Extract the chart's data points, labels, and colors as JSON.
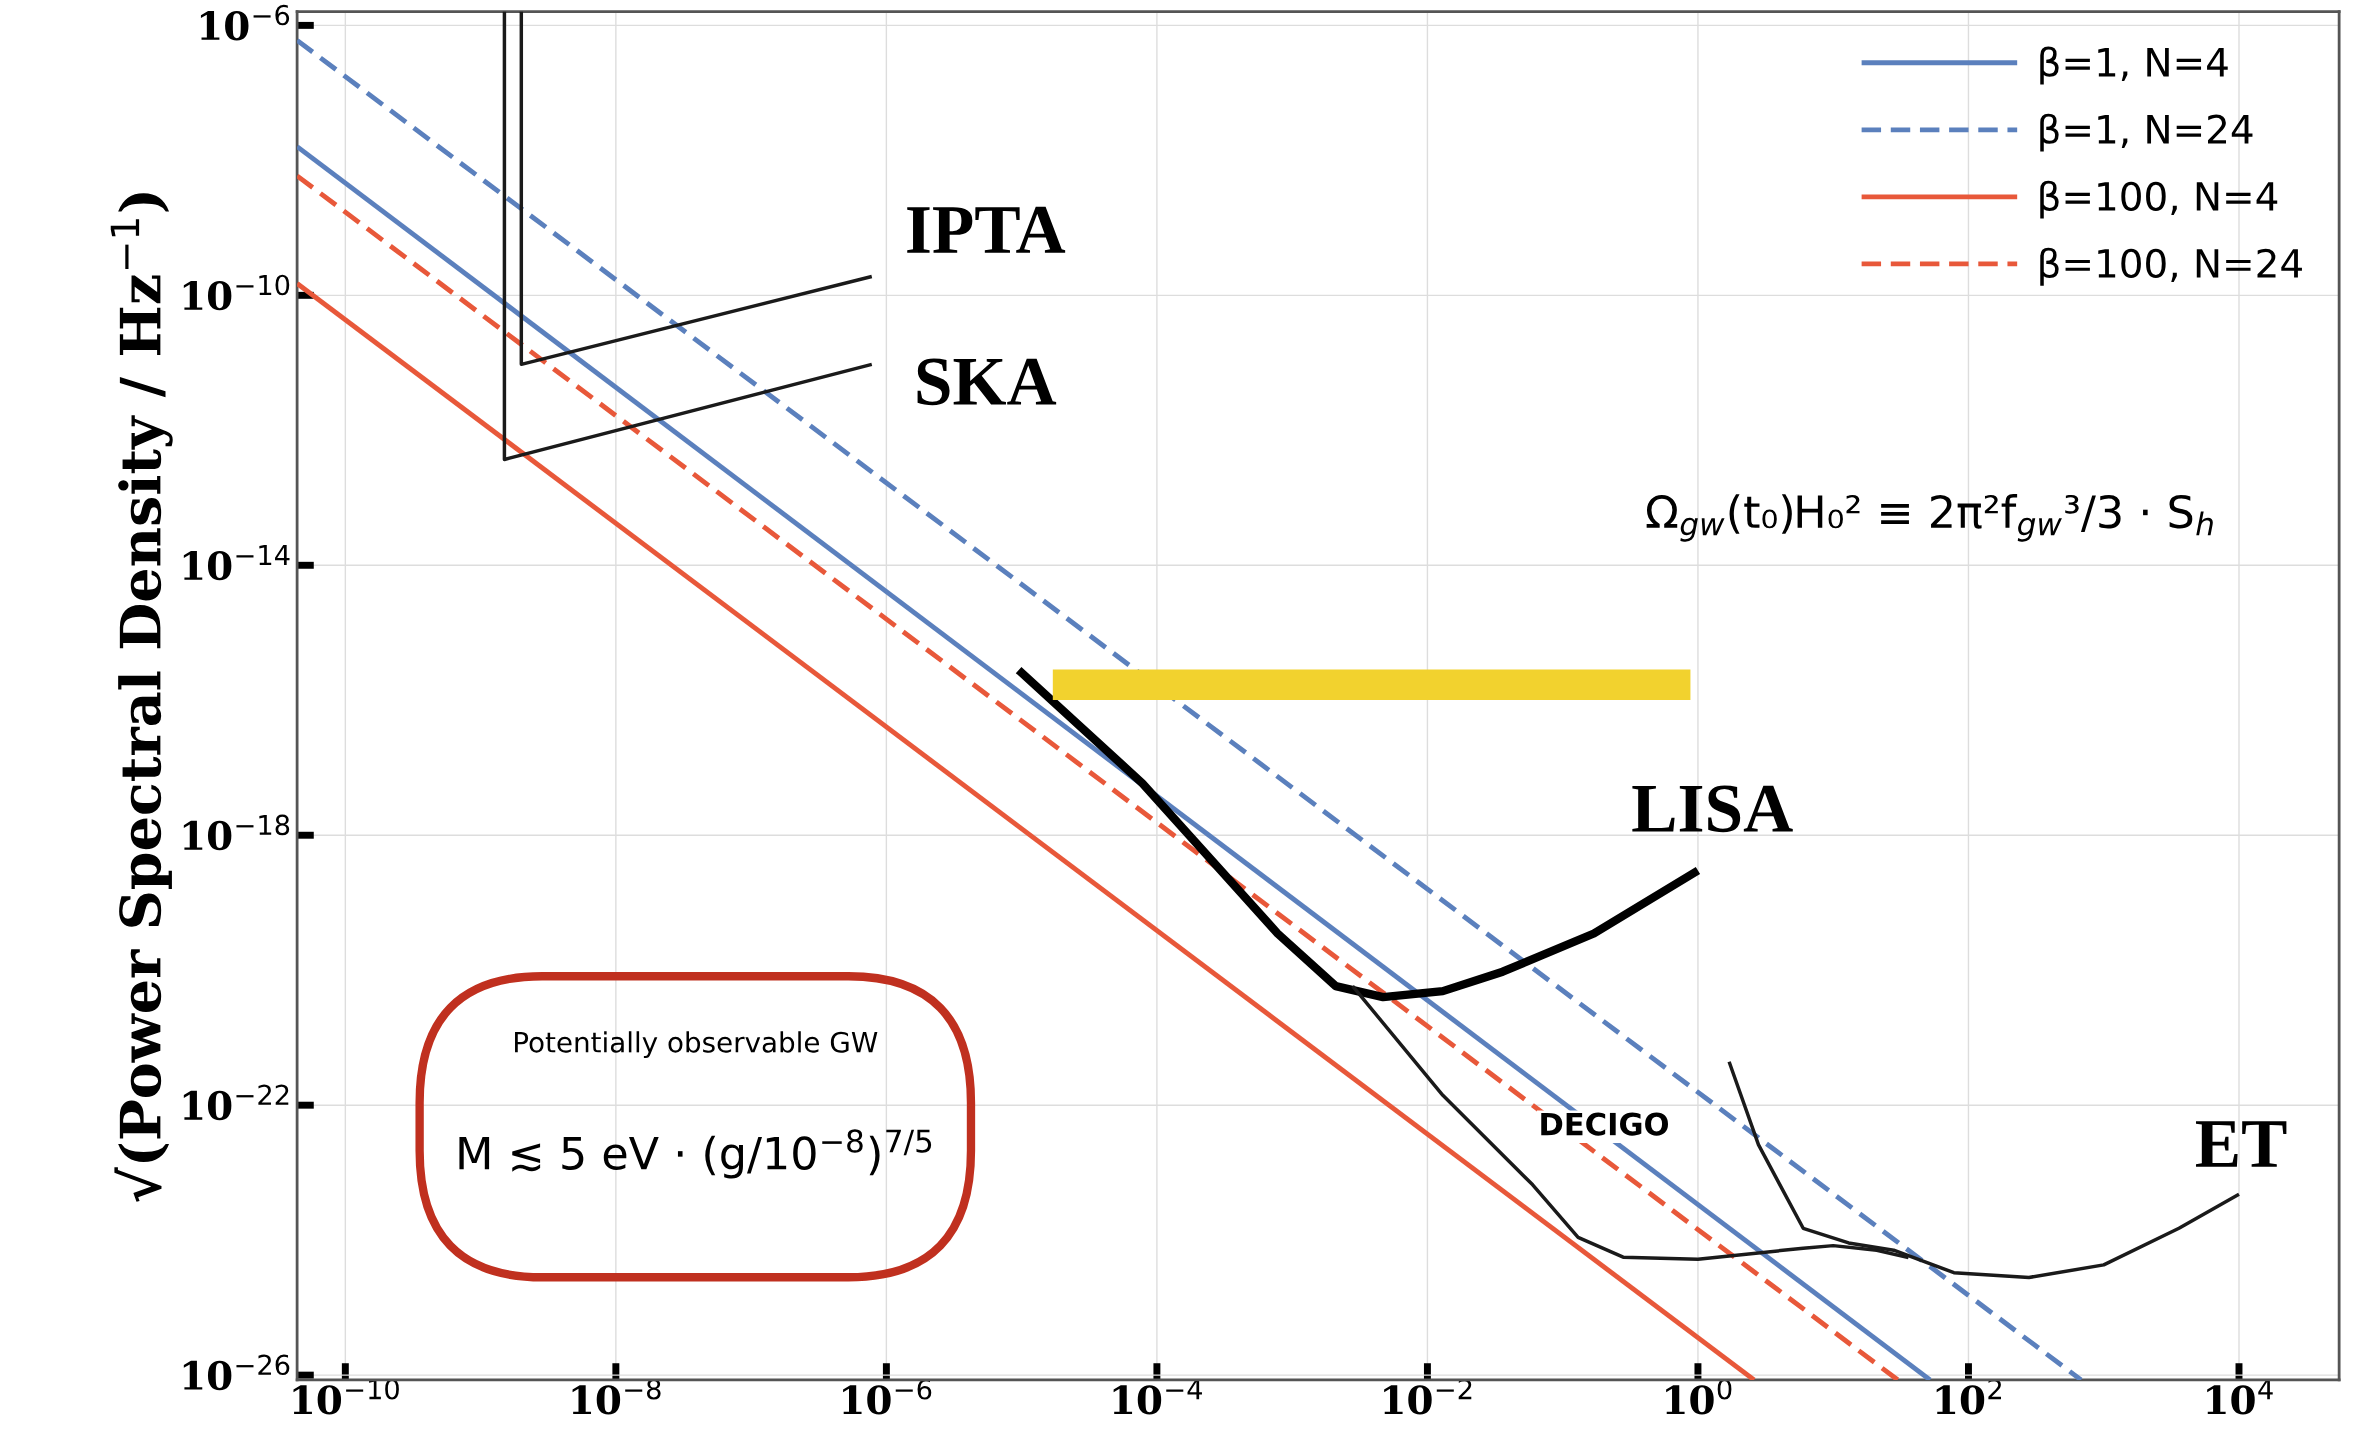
{
  "chart_data": {
    "type": "line",
    "ylabel": "√(Power Spectral Density / Hz$^{−1}$)",
    "log": "xy",
    "grid": true,
    "legend": "top right",
    "xlim": [
      4.4e-11,
      55000.0
    ],
    "ylim": [
      8.5e-27,
      1.6e-06
    ],
    "xticks": [
      {
        "value": 1e-10,
        "label": "10$^{−10}$"
      },
      {
        "value": 1e-08,
        "label": "10$^{−8}$"
      },
      {
        "value": 1e-06,
        "label": "10$^{−6}$"
      },
      {
        "value": 0.0001,
        "label": "10$^{−4}$"
      },
      {
        "value": 0.01,
        "label": "10$^{−2}$"
      },
      {
        "value": 1,
        "label": "10$^{0}$"
      },
      {
        "value": 100,
        "label": "10$^{2}$"
      },
      {
        "value": 10000,
        "label": "10$^{4}$"
      }
    ],
    "yticks": [
      {
        "value": 1e-26,
        "label": "10$^{−26}$"
      },
      {
        "value": 1e-22,
        "label": "10$^{−22}$"
      },
      {
        "value": 1e-18,
        "label": "10$^{−18}$"
      },
      {
        "value": 1e-14,
        "label": "10$^{−14}$"
      },
      {
        "value": 1e-10,
        "label": "10$^{−10}$"
      },
      {
        "value": 1e-06,
        "label": "10$^{−6}$"
      }
    ],
    "series": [
      {
        "name": "β=1, N=4",
        "color": "#5b80bd",
        "line_style": "solid",
        "x": [
          4.4e-11,
          52
        ],
        "values": [
          1.6e-08,
          8.5e-27
        ]
      },
      {
        "name": "β=1, N=24",
        "color": "#5b80bd",
        "line_style": "dashed",
        "x": [
          4.4e-11,
          680
        ],
        "values": [
          6e-07,
          8.5e-27
        ]
      },
      {
        "name": "β=100, N=4",
        "color": "#e8583a",
        "line_style": "solid",
        "x": [
          4.4e-11,
          2.6
        ],
        "values": [
          1.5e-10,
          8.5e-27
        ]
      },
      {
        "name": "β=100, N=24",
        "color": "#e8583a",
        "line_style": "dashed",
        "x": [
          4.4e-11,
          30
        ],
        "values": [
          5.9e-09,
          8.5e-27
        ]
      },
      {
        "color": "#1a1a1a",
        "line_style": "solid",
        "x": [
          1.5e-09,
          1.5e-09,
          7.8e-07
        ],
        "values": [
          1.6e-06,
          3.7e-13,
          9.5e-12
        ]
      },
      {
        "color": "#1a1a1a",
        "line_style": "solid",
        "x": [
          2e-09,
          2e-09,
          7.8e-07
        ],
        "values": [
          1.6e-06,
          9.5e-12,
          1.9e-10
        ]
      },
      {
        "color": "#000000",
        "line_style": "solid",
        "x": [
          9.5e-06,
          7.8e-05,
          0.00078,
          0.0021,
          0.0047,
          0.013,
          0.036,
          0.17,
          1
        ],
        "values": [
          2.8e-16,
          5.9e-18,
          3.5e-20,
          5.8e-21,
          4e-21,
          4.9e-21,
          9.5e-21,
          3.5e-20,
          3e-19
        ]
      },
      {
        "color": "#1a1a1a",
        "line_style": "solid",
        "x": [
          0.0028,
          0.013,
          0.06,
          0.13,
          0.28,
          1.0,
          6.0,
          10,
          21,
          36
        ],
        "values": [
          5.8e-21,
          1.4e-22,
          6.6e-24,
          1.1e-24,
          5.6e-25,
          5.2e-25,
          7.6e-25,
          8.3e-25,
          7.1e-25,
          5.5e-25
        ]
      },
      {
        "color": "#1a1a1a",
        "line_style": "solid",
        "x": [
          1.7,
          2.8,
          6.0,
          13,
          28,
          78,
          280,
          1000,
          3600,
          10000
        ],
        "values": [
          4.4e-22,
          2.6e-23,
          1.5e-24,
          9.1e-25,
          7.1e-25,
          3.3e-25,
          2.8e-25,
          4.3e-25,
          1.5e-24,
          4.8e-24
        ]
      },
      {
        "color": "#f2d22e",
        "line_style": "solid",
        "x": [
          1.7e-05,
          0.88
        ],
        "values": [
          1.7e-16,
          1.7e-16
        ]
      }
    ],
    "annotations": [
      "IPTA",
      "SKA",
      "LISA",
      "DECIGO",
      "ET",
      "Ω$_{gw}$(t₀)H₀² ≡ 2π²f$_{gw}$³/3 · S$_{h}$",
      "Potentially observable GW",
      "M ≲ 5 eV · (g/10$^{−8}$)$^{7/5}$"
    ]
  }
}
